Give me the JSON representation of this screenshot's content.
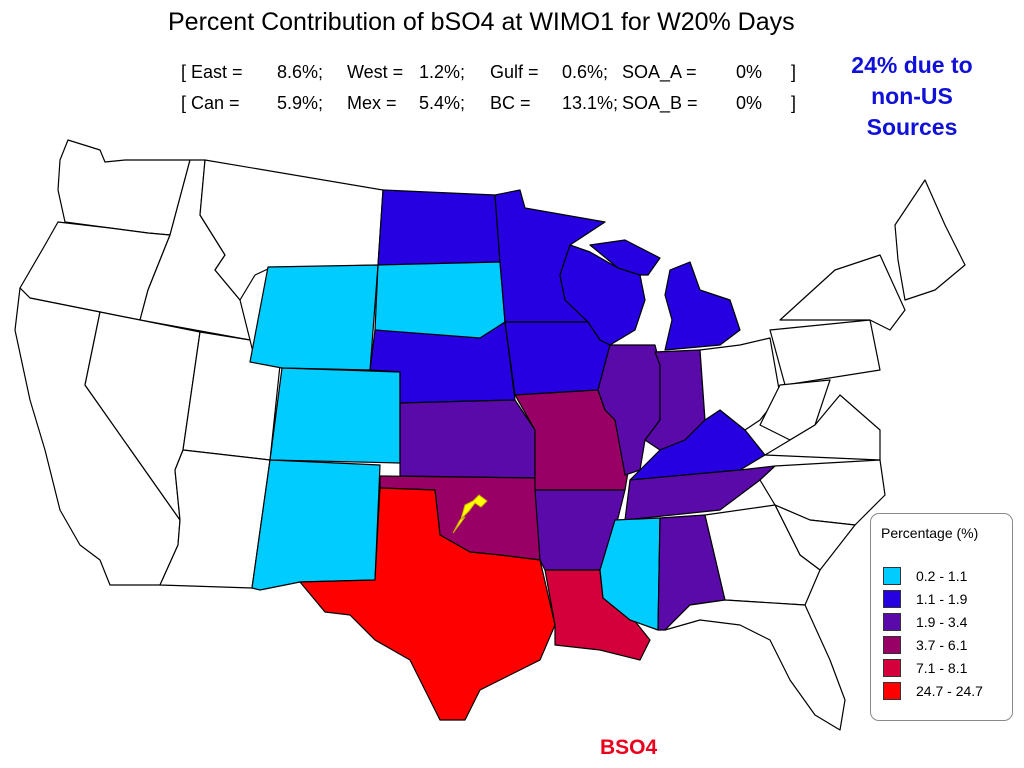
{
  "title": "Percent Contribution of bSO4 at WIMO1 for W20% Days",
  "contributions": {
    "row1": [
      {
        "key": "[ East =",
        "val": "8.6%;"
      },
      {
        "key": "West =",
        "val": "1.2%;"
      },
      {
        "key": "Gulf =",
        "val": "0.6%;"
      },
      {
        "key": "SOA_A =",
        "val": "0%"
      }
    ],
    "row2": [
      {
        "key": "[ Can =",
        "val": "5.9%;"
      },
      {
        "key": "Mex =",
        "val": "5.4%;"
      },
      {
        "key": "BC =",
        "val": "13.1%;"
      },
      {
        "key": "SOA_B =",
        "val": "0%"
      }
    ],
    "close": "]"
  },
  "annotation": {
    "line1": "24% due to",
    "line2": "non-US",
    "line3": "Sources"
  },
  "legend": {
    "title": "Percentage (%)",
    "classes": [
      {
        "label": "0.2 - 1.1",
        "color": "#00ccff"
      },
      {
        "label": "1.1 - 1.9",
        "color": "#2600e0"
      },
      {
        "label": "1.9 - 3.4",
        "color": "#5a0aa8"
      },
      {
        "label": "3.7 - 6.1",
        "color": "#990066"
      },
      {
        "label": "7.1 - 8.1",
        "color": "#d4003c"
      },
      {
        "label": "24.7 - 24.7",
        "color": "#ff0000"
      }
    ]
  },
  "map": {
    "receptor_icon": "pushpin-icon",
    "receptor_color": "#ffff00",
    "states": {
      "washington": "",
      "oregon": "",
      "california": "",
      "idaho": "",
      "nevada": "",
      "montana": "",
      "utah": "",
      "arizona": "",
      "wyoming": "0.2 - 1.1",
      "colorado": "0.2 - 1.1",
      "new_mexico": "0.2 - 1.1",
      "south_dakota": "0.2 - 1.1",
      "mississippi": "0.2 - 1.1",
      "north_dakota": "1.1 - 1.9",
      "nebraska": "1.1 - 1.9",
      "minnesota": "1.1 - 1.9",
      "iowa": "1.1 - 1.9",
      "wisconsin": "1.1 - 1.9",
      "michigan": "1.1 - 1.9",
      "kentucky": "1.1 - 1.9",
      "kansas": "1.9 - 3.4",
      "arkansas": "1.9 - 3.4",
      "illinois": "1.9 - 3.4",
      "indiana": "1.9 - 3.4",
      "tennessee": "1.9 - 3.4",
      "alabama": "1.9 - 3.4",
      "missouri": "3.7 - 6.1",
      "oklahoma": "3.7 - 6.1",
      "louisiana": "7.1 - 8.1",
      "texas": "24.7 - 24.7",
      "ohio": "",
      "pennsylvania": "",
      "new_york": "",
      "maine": "",
      "west_virginia": "",
      "virginia": "",
      "north_carolina": "",
      "south_carolina": "",
      "georgia": "",
      "florida": ""
    }
  },
  "footer": "BSO4"
}
